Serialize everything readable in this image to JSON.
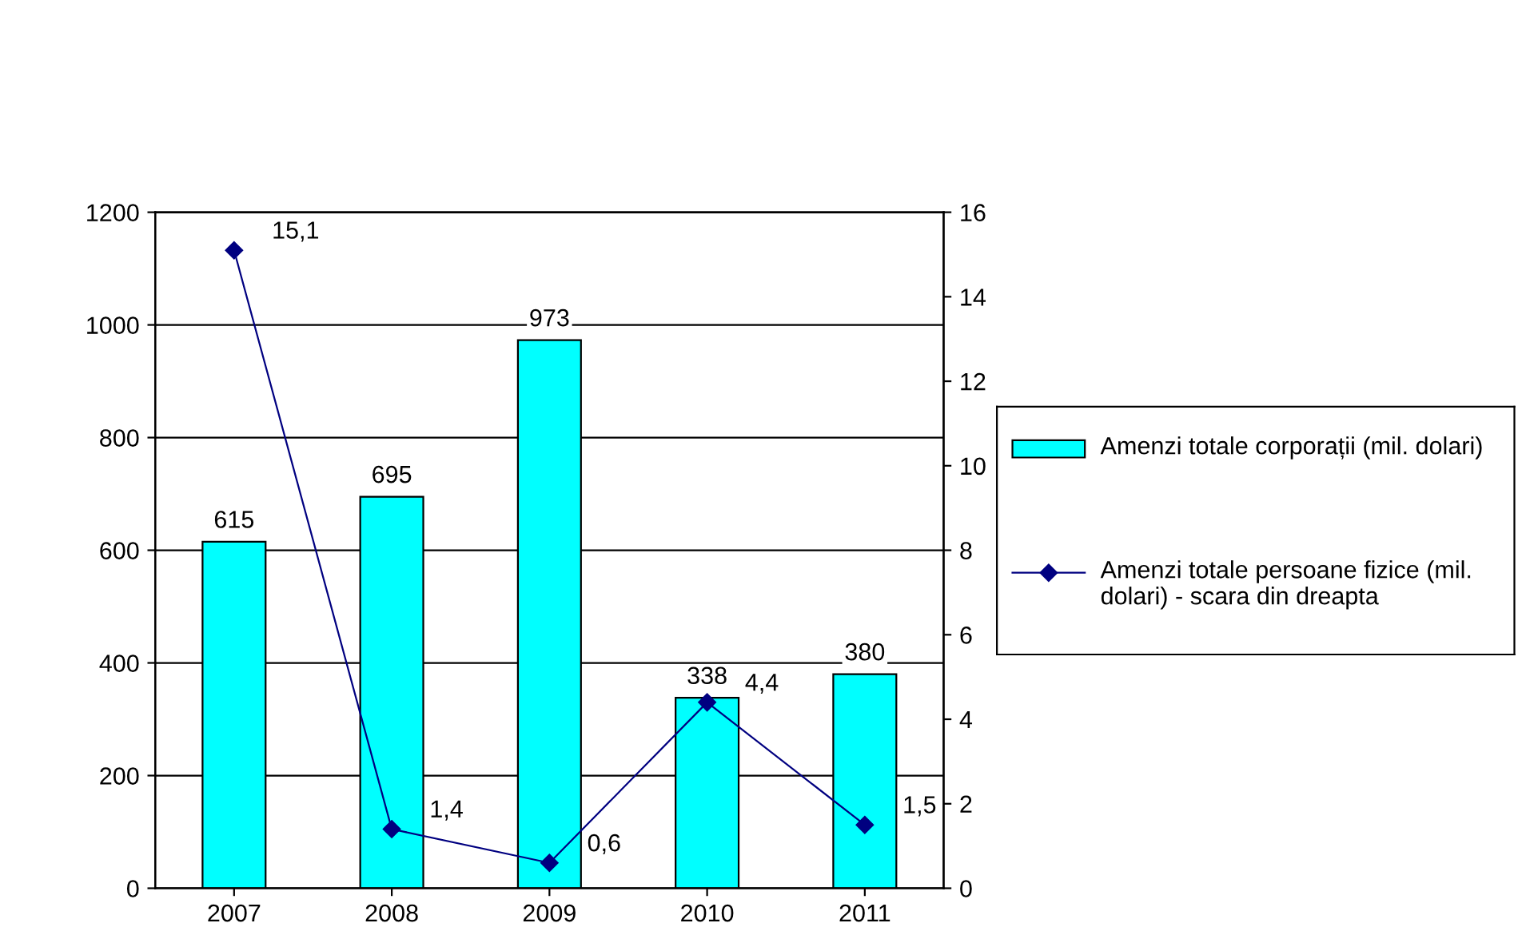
{
  "chart_data": {
    "type": "bar",
    "categories": [
      "2007",
      "2008",
      "2009",
      "2010",
      "2011"
    ],
    "series": [
      {
        "name": "Amenzi totale corporații (mil. dolari)",
        "color": "#00ffff",
        "values": [
          615,
          695,
          973,
          338,
          380
        ],
        "data_labels": true
      },
      {
        "name": "Amenzi totale persoane fizice (mil. dolari) - scara din dreapta",
        "type": "line",
        "axis": "y2",
        "color": "#000080",
        "marker": "diamond",
        "line_style": "solid",
        "values": [
          15.1,
          1.4,
          0.6,
          4.4,
          1.5
        ],
        "value_labels": [
          "15,1",
          "1,4",
          "0,6",
          "4,4",
          "1,5"
        ]
      }
    ],
    "ylim": [
      0,
      1200
    ],
    "yticks": [
      0,
      200,
      400,
      600,
      800,
      1000,
      1200
    ],
    "y2lim": [
      0,
      16
    ],
    "y2ticks": [
      0,
      2,
      4,
      6,
      8,
      10,
      12,
      14,
      16
    ],
    "grid": "y",
    "legend": "right"
  }
}
